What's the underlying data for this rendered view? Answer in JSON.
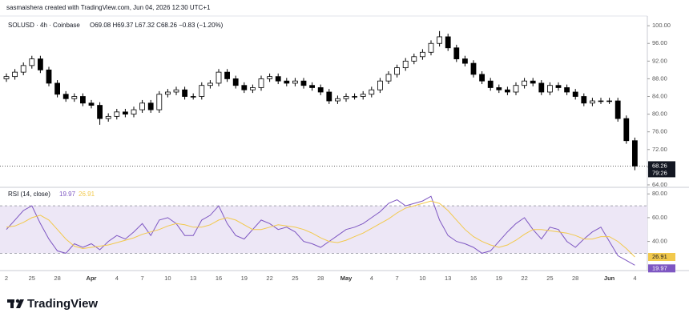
{
  "header": {
    "credit": "sasmaishera created with TradingView.com, Jun 04, 2026 12:30 UTC+1",
    "symbol": "SOLUSD · 4h · Coinbase",
    "ohlc": "O69.08 H69.37 L67.32 C68.26 −0.83 (−1.20%)",
    "countdown": "79:26"
  },
  "footer": {
    "brand": "TradingView"
  },
  "chart_data": [
    {
      "type": "candlestick",
      "up_color": "#ffffff",
      "down_color": "#000000",
      "line_color": "#000000",
      "ylim": [
        63.45,
        102.2
      ],
      "yticks": [
        {
          "value": 64,
          "label": "64.00"
        },
        {
          "value": 68,
          "label": "68.00"
        },
        {
          "value": 72,
          "label": "72.00"
        },
        {
          "value": 76,
          "label": "76.00"
        },
        {
          "value": 80,
          "label": "80.00"
        },
        {
          "value": 84,
          "label": "84.00"
        },
        {
          "value": 88,
          "label": "88.00"
        },
        {
          "value": 92,
          "label": "92.00"
        },
        {
          "value": 96,
          "label": "96.00"
        },
        {
          "value": 100,
          "label": "100.00"
        }
      ],
      "open": [
        88,
        88.5,
        89.5,
        91,
        92.5,
        90,
        87,
        84.5,
        83.5,
        84,
        82.5,
        82,
        79,
        79.5,
        80.5,
        80,
        81,
        82.5,
        81,
        84.5,
        85,
        85.5,
        84,
        84,
        86.5,
        87,
        89.5,
        88,
        86.5,
        85.5,
        86,
        88,
        88.5,
        87.5,
        87,
        87.5,
        86.5,
        86,
        85,
        83,
        83.5,
        84,
        84,
        84.5,
        85.5,
        87.5,
        89,
        90.5,
        92,
        93,
        94,
        96,
        97.5,
        95,
        92.5,
        91.5,
        89,
        87.5,
        86,
        85.5,
        85,
        86.5,
        87.5,
        87,
        85,
        86.5,
        86,
        85,
        84,
        82.5,
        83,
        83,
        83,
        79,
        74
      ],
      "high": [
        89.2,
        90.2,
        91.7,
        93.2,
        93.2,
        90.7,
        87.7,
        85.2,
        84.7,
        84.7,
        83.2,
        82.7,
        80.2,
        81.2,
        81.2,
        81.7,
        83.2,
        83.2,
        85.2,
        85.7,
        86.2,
        86.2,
        84.7,
        87.2,
        87.7,
        90.2,
        90.2,
        88.7,
        87.2,
        86.7,
        88.7,
        89.2,
        89.2,
        88.2,
        88.2,
        88.2,
        87.2,
        86.7,
        85.7,
        84.2,
        84.7,
        84.7,
        85.2,
        86.2,
        88.2,
        89.7,
        91.2,
        92.7,
        93.7,
        94.7,
        96.7,
        98.8,
        98.2,
        95.7,
        93.2,
        92.2,
        89.7,
        88.2,
        86.7,
        86.2,
        87.2,
        88.2,
        88.2,
        87.7,
        87.2,
        87.2,
        86.7,
        85.7,
        84.7,
        83.7,
        83.7,
        83.7,
        83.7,
        79.7,
        74.7
      ],
      "low": [
        87.3,
        87.8,
        88.8,
        90.3,
        89.3,
        86.3,
        83.8,
        82.8,
        82.8,
        81.8,
        81.3,
        77.6,
        78.3,
        78.8,
        79.3,
        79.3,
        80.3,
        80.3,
        80.3,
        83.8,
        84.3,
        83.3,
        83.3,
        83.3,
        85.8,
        86.3,
        87.3,
        85.8,
        84.8,
        84.8,
        85.3,
        87.3,
        86.8,
        86.3,
        86.3,
        85.8,
        85.3,
        84.3,
        82.3,
        82.3,
        82.8,
        83.3,
        83.3,
        83.8,
        84.8,
        86.8,
        88.3,
        89.8,
        91.3,
        92.3,
        93.3,
        95.3,
        94.3,
        91.8,
        90.8,
        88.3,
        86.8,
        85.3,
        84.8,
        84.3,
        84.3,
        85.8,
        86.3,
        84.3,
        84.3,
        85.3,
        84.3,
        83.3,
        81.8,
        81.8,
        82.3,
        82.3,
        78.3,
        73.3,
        67.32
      ],
      "close": [
        88.5,
        89.5,
        91,
        92.5,
        90,
        87,
        84.5,
        83.5,
        84,
        82.5,
        82,
        79,
        79.5,
        80.5,
        80,
        81,
        82.5,
        81,
        84.5,
        85,
        85.5,
        84,
        84,
        86.5,
        87,
        89.5,
        88,
        86.5,
        85.5,
        86,
        88,
        88.5,
        87.5,
        87,
        87.5,
        86.5,
        86,
        85,
        83,
        83.5,
        84,
        84,
        84.5,
        85.5,
        87.5,
        89,
        90.5,
        92,
        93,
        94,
        96,
        97.5,
        95,
        92.5,
        91.5,
        89,
        87.5,
        86,
        85.5,
        85,
        86.5,
        87.5,
        87,
        85,
        86.5,
        86,
        85,
        84,
        82.5,
        83,
        83,
        83,
        79,
        74,
        68.26
      ]
    },
    {
      "type": "line",
      "title": "RSI (14, close)",
      "band_color": "#ede7f6",
      "bands": [
        30,
        70
      ],
      "categories": [
        "2",
        null,
        null,
        "25",
        null,
        null,
        "28",
        null,
        null,
        null,
        "Apr",
        null,
        null,
        "4",
        null,
        null,
        "7",
        null,
        null,
        "10",
        null,
        null,
        "13",
        null,
        null,
        "16",
        null,
        null,
        "19",
        null,
        null,
        "22",
        null,
        null,
        "25",
        null,
        null,
        "28",
        null,
        null,
        "May",
        null,
        null,
        "4",
        null,
        null,
        "7",
        null,
        null,
        "10",
        null,
        null,
        "13",
        null,
        null,
        "16",
        null,
        null,
        "19",
        null,
        null,
        "22",
        null,
        null,
        "25",
        null,
        null,
        "28",
        null,
        null,
        null,
        "Jun",
        null,
        null,
        "4"
      ],
      "ylim": [
        16.8,
        84.2
      ],
      "yticks": [
        {
          "value": 40,
          "label": "40.00"
        },
        {
          "value": 60,
          "label": "60.00"
        },
        {
          "value": 80,
          "label": "80.00"
        }
      ],
      "series": [
        {
          "color": "#7e57c2",
          "values": [
            50,
            58,
            66,
            70,
            55,
            42,
            32,
            30,
            38,
            35,
            38,
            33,
            40,
            45,
            42,
            48,
            55,
            45,
            58,
            60,
            55,
            45,
            45,
            58,
            62,
            70,
            55,
            45,
            42,
            50,
            58,
            55,
            50,
            52,
            48,
            40,
            38,
            35,
            40,
            45,
            50,
            52,
            55,
            60,
            65,
            72,
            75,
            70,
            72,
            74,
            78,
            58,
            45,
            40,
            38,
            35,
            30,
            32,
            40,
            48,
            55,
            60,
            50,
            42,
            52,
            50,
            40,
            35,
            42,
            48,
            52,
            40,
            28,
            24,
            19.97
          ]
        },
        {
          "color": "#f2c94c",
          "values": [
            52,
            53,
            56,
            60,
            62,
            58,
            50,
            42,
            36,
            34,
            35,
            36,
            37,
            39,
            41,
            43,
            46,
            48,
            50,
            53,
            55,
            54,
            52,
            52,
            54,
            58,
            60,
            58,
            54,
            50,
            50,
            52,
            54,
            53,
            52,
            50,
            47,
            43,
            40,
            39,
            41,
            44,
            47,
            51,
            55,
            59,
            64,
            68,
            70,
            72,
            74,
            72,
            66,
            58,
            50,
            44,
            40,
            37,
            35,
            37,
            41,
            46,
            50,
            50,
            49,
            48,
            47,
            45,
            42,
            42,
            44,
            44,
            40,
            34,
            26.91
          ]
        }
      ]
    }
  ]
}
